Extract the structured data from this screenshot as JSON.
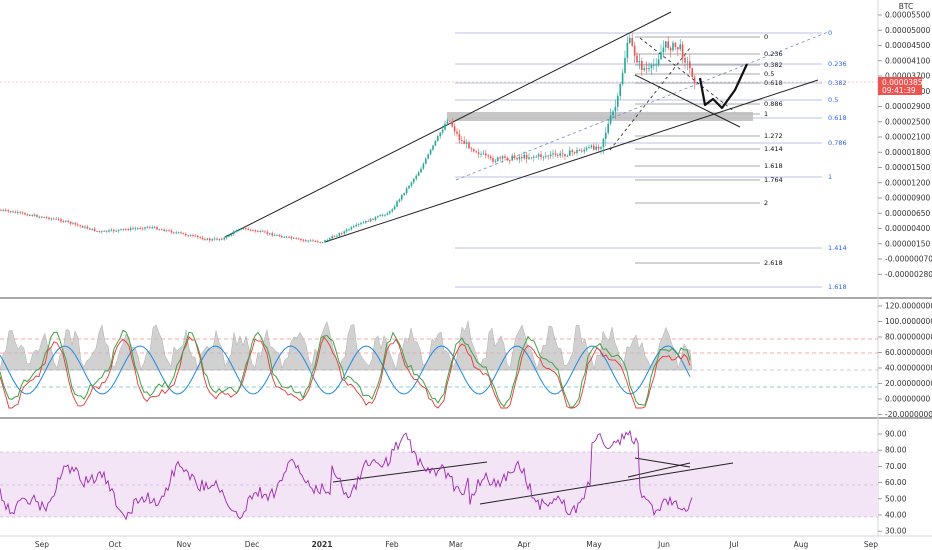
{
  "chart_data": {
    "type": "candlestick",
    "currency": "BTC",
    "price_axis": {
      "ticks": [
        "0.00005500",
        "0.00005000",
        "0.00004500",
        "0.00004100",
        "0.00003700",
        "0.00003300",
        "0.00002900",
        "0.00002500",
        "0.00002100",
        "0.00001800",
        "0.00001500",
        "0.00001200",
        "0.00000900",
        "0.00000650",
        "0.00000400",
        "0.00000150",
        "-0.00000070",
        "-0.00000280"
      ],
      "current_price": "0.00003851",
      "countdown": "09:41:39",
      "price_color": "#ef5350"
    },
    "fib_labels_black": [
      "0",
      "0.236",
      "0.382",
      "0.5",
      "0.618",
      "0.886",
      "1",
      "1.272",
      "1.414",
      "1.618",
      "1.764",
      "2",
      "2.618"
    ],
    "fib_labels_blue": [
      "0",
      "0.236",
      "0.382",
      "0.5",
      "0.618",
      "0.786",
      "1",
      "1.414",
      "1.618"
    ],
    "osc1_axis": {
      "ticks": [
        "120.00000000",
        "100.00000000",
        "80.00000000",
        "60.00000000",
        "40.00000000",
        "20.00000000",
        "0.00000000",
        "-20.00000000"
      ]
    },
    "osc2_axis": {
      "ticks": [
        "90.00",
        "80.00",
        "70.00",
        "60.00",
        "50.00",
        "40.00",
        "30.00"
      ]
    },
    "time_axis": {
      "labels": [
        "Sep",
        "Oct",
        "Nov",
        "Dec",
        "2021",
        "Feb",
        "Mar",
        "Apr",
        "May",
        "Jun",
        "Jul",
        "Aug",
        "Sep"
      ]
    },
    "colors": {
      "up": "#26a69a",
      "down": "#ef5350",
      "fib_blue": "#2962ff",
      "rsi": "#9c27b0",
      "rsi_band": "#f3e5f5"
    }
  }
}
